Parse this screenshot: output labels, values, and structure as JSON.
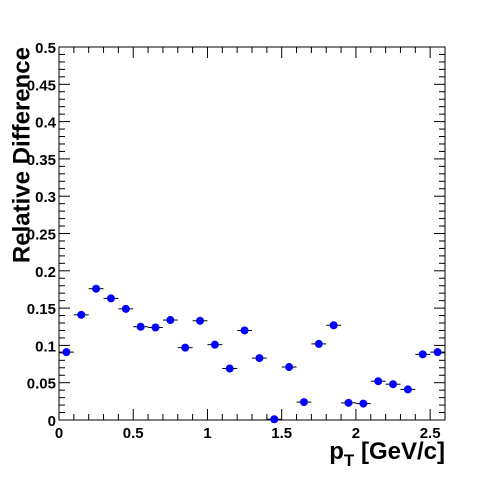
{
  "chart_data": {
    "type": "scatter",
    "xlabel_main": "p",
    "xlabel_sub": "T",
    "xlabel_unit": " [GeV/c]",
    "ylabel": "Relative Difference",
    "xlim": [
      0,
      2.6
    ],
    "ylim": [
      0,
      0.5
    ],
    "grid": false,
    "x_ticks": [
      {
        "v": 0,
        "label": "0"
      },
      {
        "v": 0.5,
        "label": "0.5"
      },
      {
        "v": 1,
        "label": "1"
      },
      {
        "v": 1.5,
        "label": "1.5"
      },
      {
        "v": 2,
        "label": "2"
      },
      {
        "v": 2.5,
        "label": "2.5"
      }
    ],
    "y_ticks": [
      {
        "v": 0,
        "label": "0"
      },
      {
        "v": 0.05,
        "label": "0.05"
      },
      {
        "v": 0.1,
        "label": "0.1"
      },
      {
        "v": 0.15,
        "label": "0.15"
      },
      {
        "v": 0.2,
        "label": "0.2"
      },
      {
        "v": 0.25,
        "label": "0.25"
      },
      {
        "v": 0.3,
        "label": "0.3"
      },
      {
        "v": 0.35,
        "label": "0.35"
      },
      {
        "v": 0.4,
        "label": "0.4"
      },
      {
        "v": 0.45,
        "label": "0.45"
      },
      {
        "v": 0.5,
        "label": "0.5"
      }
    ],
    "bin_width": 0.1,
    "marker_color": "#0000ff",
    "x": [
      0.05,
      0.15,
      0.25,
      0.35,
      0.45,
      0.55,
      0.65,
      0.75,
      0.85,
      0.95,
      1.05,
      1.15,
      1.25,
      1.35,
      1.45,
      1.55,
      1.65,
      1.75,
      1.85,
      1.95,
      2.05,
      2.15,
      2.25,
      2.35,
      2.45,
      2.55
    ],
    "y": [
      0.091,
      0.141,
      0.176,
      0.163,
      0.149,
      0.125,
      0.124,
      0.134,
      0.097,
      0.133,
      0.101,
      0.069,
      0.12,
      0.083,
      0.001,
      0.071,
      0.024,
      0.102,
      0.127,
      0.023,
      0.022,
      0.052,
      0.048,
      0.041,
      0.088,
      0.091
    ]
  }
}
